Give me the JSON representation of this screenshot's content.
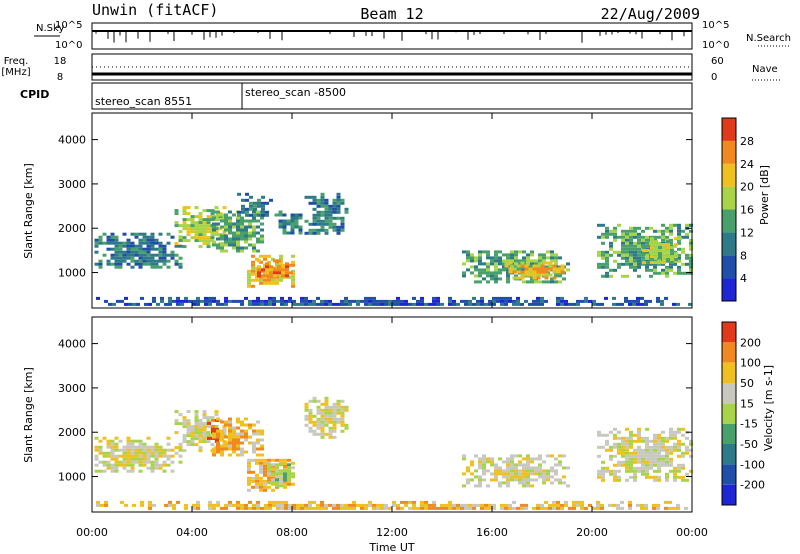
{
  "header": {
    "station": "Unwin (fitACF)",
    "beam": "Beam 12",
    "date": "22/Aug/2009"
  },
  "status_panels": {
    "nsky": {
      "label": "N.Sky",
      "top_tick": "10^5",
      "bottom_tick": "10^0"
    },
    "nsearch": {
      "label": "N.Search",
      "top_tick": "10^5",
      "bottom_tick": "10^0"
    },
    "freq": {
      "label_line1": "Freq.",
      "label_line2": "[MHz]",
      "top_tick": "18",
      "bottom_tick": "8"
    },
    "nave": {
      "label": "Nave",
      "top_tick": "60",
      "bottom_tick": "0"
    },
    "cpid": {
      "label": "CPID",
      "segments": [
        "stereo_scan 8551",
        "stereo_scan -8500"
      ],
      "change_time": "06:00"
    }
  },
  "chart_data": [
    {
      "type": "heatmap",
      "title": "",
      "xlabel": "Time UT",
      "ylabel": "Slant Range [km]",
      "x_ticks": [
        "00:00",
        "04:00",
        "08:00",
        "12:00",
        "16:00",
        "20:00",
        "00:00"
      ],
      "y_ticks": [
        "1000",
        "2000",
        "3000",
        "4000"
      ],
      "ylim": [
        200,
        4600
      ],
      "colorbar": {
        "label": "Power [dB]",
        "ticks": [
          "4",
          "8",
          "12",
          "16",
          "20",
          "24",
          "28"
        ],
        "colors": [
          "#1e26d4",
          "#1f4fa8",
          "#2f7a88",
          "#4aa06a",
          "#a8d44a",
          "#f0c020",
          "#f08a20",
          "#e03a1a"
        ]
      },
      "regions": [
        {
          "t0": 0.1,
          "t1": 3.5,
          "r0": 1100,
          "r1": 1900,
          "level": 2
        },
        {
          "t0": 3.3,
          "t1": 5.3,
          "r0": 1600,
          "r1": 2500,
          "level": 4
        },
        {
          "t0": 4.8,
          "t1": 6.8,
          "r0": 1500,
          "r1": 2400,
          "level": 3
        },
        {
          "t0": 5.8,
          "t1": 7.2,
          "r0": 2300,
          "r1": 2800,
          "level": 2
        },
        {
          "t0": 6.2,
          "t1": 8.1,
          "r0": 700,
          "r1": 1400,
          "level": 5
        },
        {
          "t0": 6.6,
          "t1": 7.9,
          "r0": 900,
          "r1": 1300,
          "level": 6
        },
        {
          "t0": 7.3,
          "t1": 8.4,
          "r0": 1900,
          "r1": 2400,
          "level": 2
        },
        {
          "t0": 8.5,
          "t1": 10.2,
          "r0": 1900,
          "r1": 2800,
          "level": 2
        },
        {
          "t0": 14.8,
          "t1": 19.0,
          "r0": 800,
          "r1": 1500,
          "level": 3
        },
        {
          "t0": 16.5,
          "t1": 18.8,
          "r0": 850,
          "r1": 1250,
          "level": 5
        },
        {
          "t0": 20.2,
          "t1": 24.0,
          "r0": 900,
          "r1": 2100,
          "level": 3
        },
        {
          "t0": 22.0,
          "t1": 23.5,
          "r0": 1200,
          "r1": 1800,
          "level": 4
        },
        {
          "t0": 0.0,
          "t1": 24.0,
          "r0": 250,
          "r1": 450,
          "level": 1
        }
      ]
    },
    {
      "type": "heatmap",
      "title": "",
      "xlabel": "Time UT",
      "ylabel": "Slant Range [km]",
      "x_ticks": [
        "00:00",
        "04:00",
        "08:00",
        "12:00",
        "16:00",
        "20:00",
        "00:00"
      ],
      "y_ticks": [
        "1000",
        "2000",
        "3000",
        "4000"
      ],
      "ylim": [
        200,
        4600
      ],
      "colorbar": {
        "label": "Velocity [m s-1]",
        "ticks": [
          "200",
          "100",
          "50",
          "15",
          "-15",
          "-50",
          "-100",
          "-200"
        ],
        "colors": [
          "#1e26d4",
          "#1f4fa8",
          "#2f7a88",
          "#4aa06a",
          "#a8d44a",
          "#c8c8c0",
          "#f0c020",
          "#f08a20",
          "#e03a1a"
        ]
      },
      "regions": [
        {
          "t0": 0.1,
          "t1": 3.5,
          "r0": 1100,
          "r1": 1900,
          "level": 5
        },
        {
          "t0": 3.3,
          "t1": 5.3,
          "r0": 1600,
          "r1": 2500,
          "level": 5
        },
        {
          "t0": 4.6,
          "t1": 5.0,
          "r0": 1800,
          "r1": 2300,
          "level": 8
        },
        {
          "t0": 4.8,
          "t1": 6.8,
          "r0": 1500,
          "r1": 2400,
          "level": 6
        },
        {
          "t0": 6.2,
          "t1": 8.1,
          "r0": 700,
          "r1": 1400,
          "level": 6
        },
        {
          "t0": 7.0,
          "t1": 8.0,
          "r0": 800,
          "r1": 1300,
          "level": 4
        },
        {
          "t0": 8.5,
          "t1": 10.2,
          "r0": 1900,
          "r1": 2800,
          "level": 5
        },
        {
          "t0": 14.8,
          "t1": 19.0,
          "r0": 800,
          "r1": 1500,
          "level": 5
        },
        {
          "t0": 20.2,
          "t1": 24.0,
          "r0": 900,
          "r1": 2100,
          "level": 5
        },
        {
          "t0": 0.0,
          "t1": 24.0,
          "r0": 250,
          "r1": 450,
          "level": 6
        }
      ]
    }
  ]
}
